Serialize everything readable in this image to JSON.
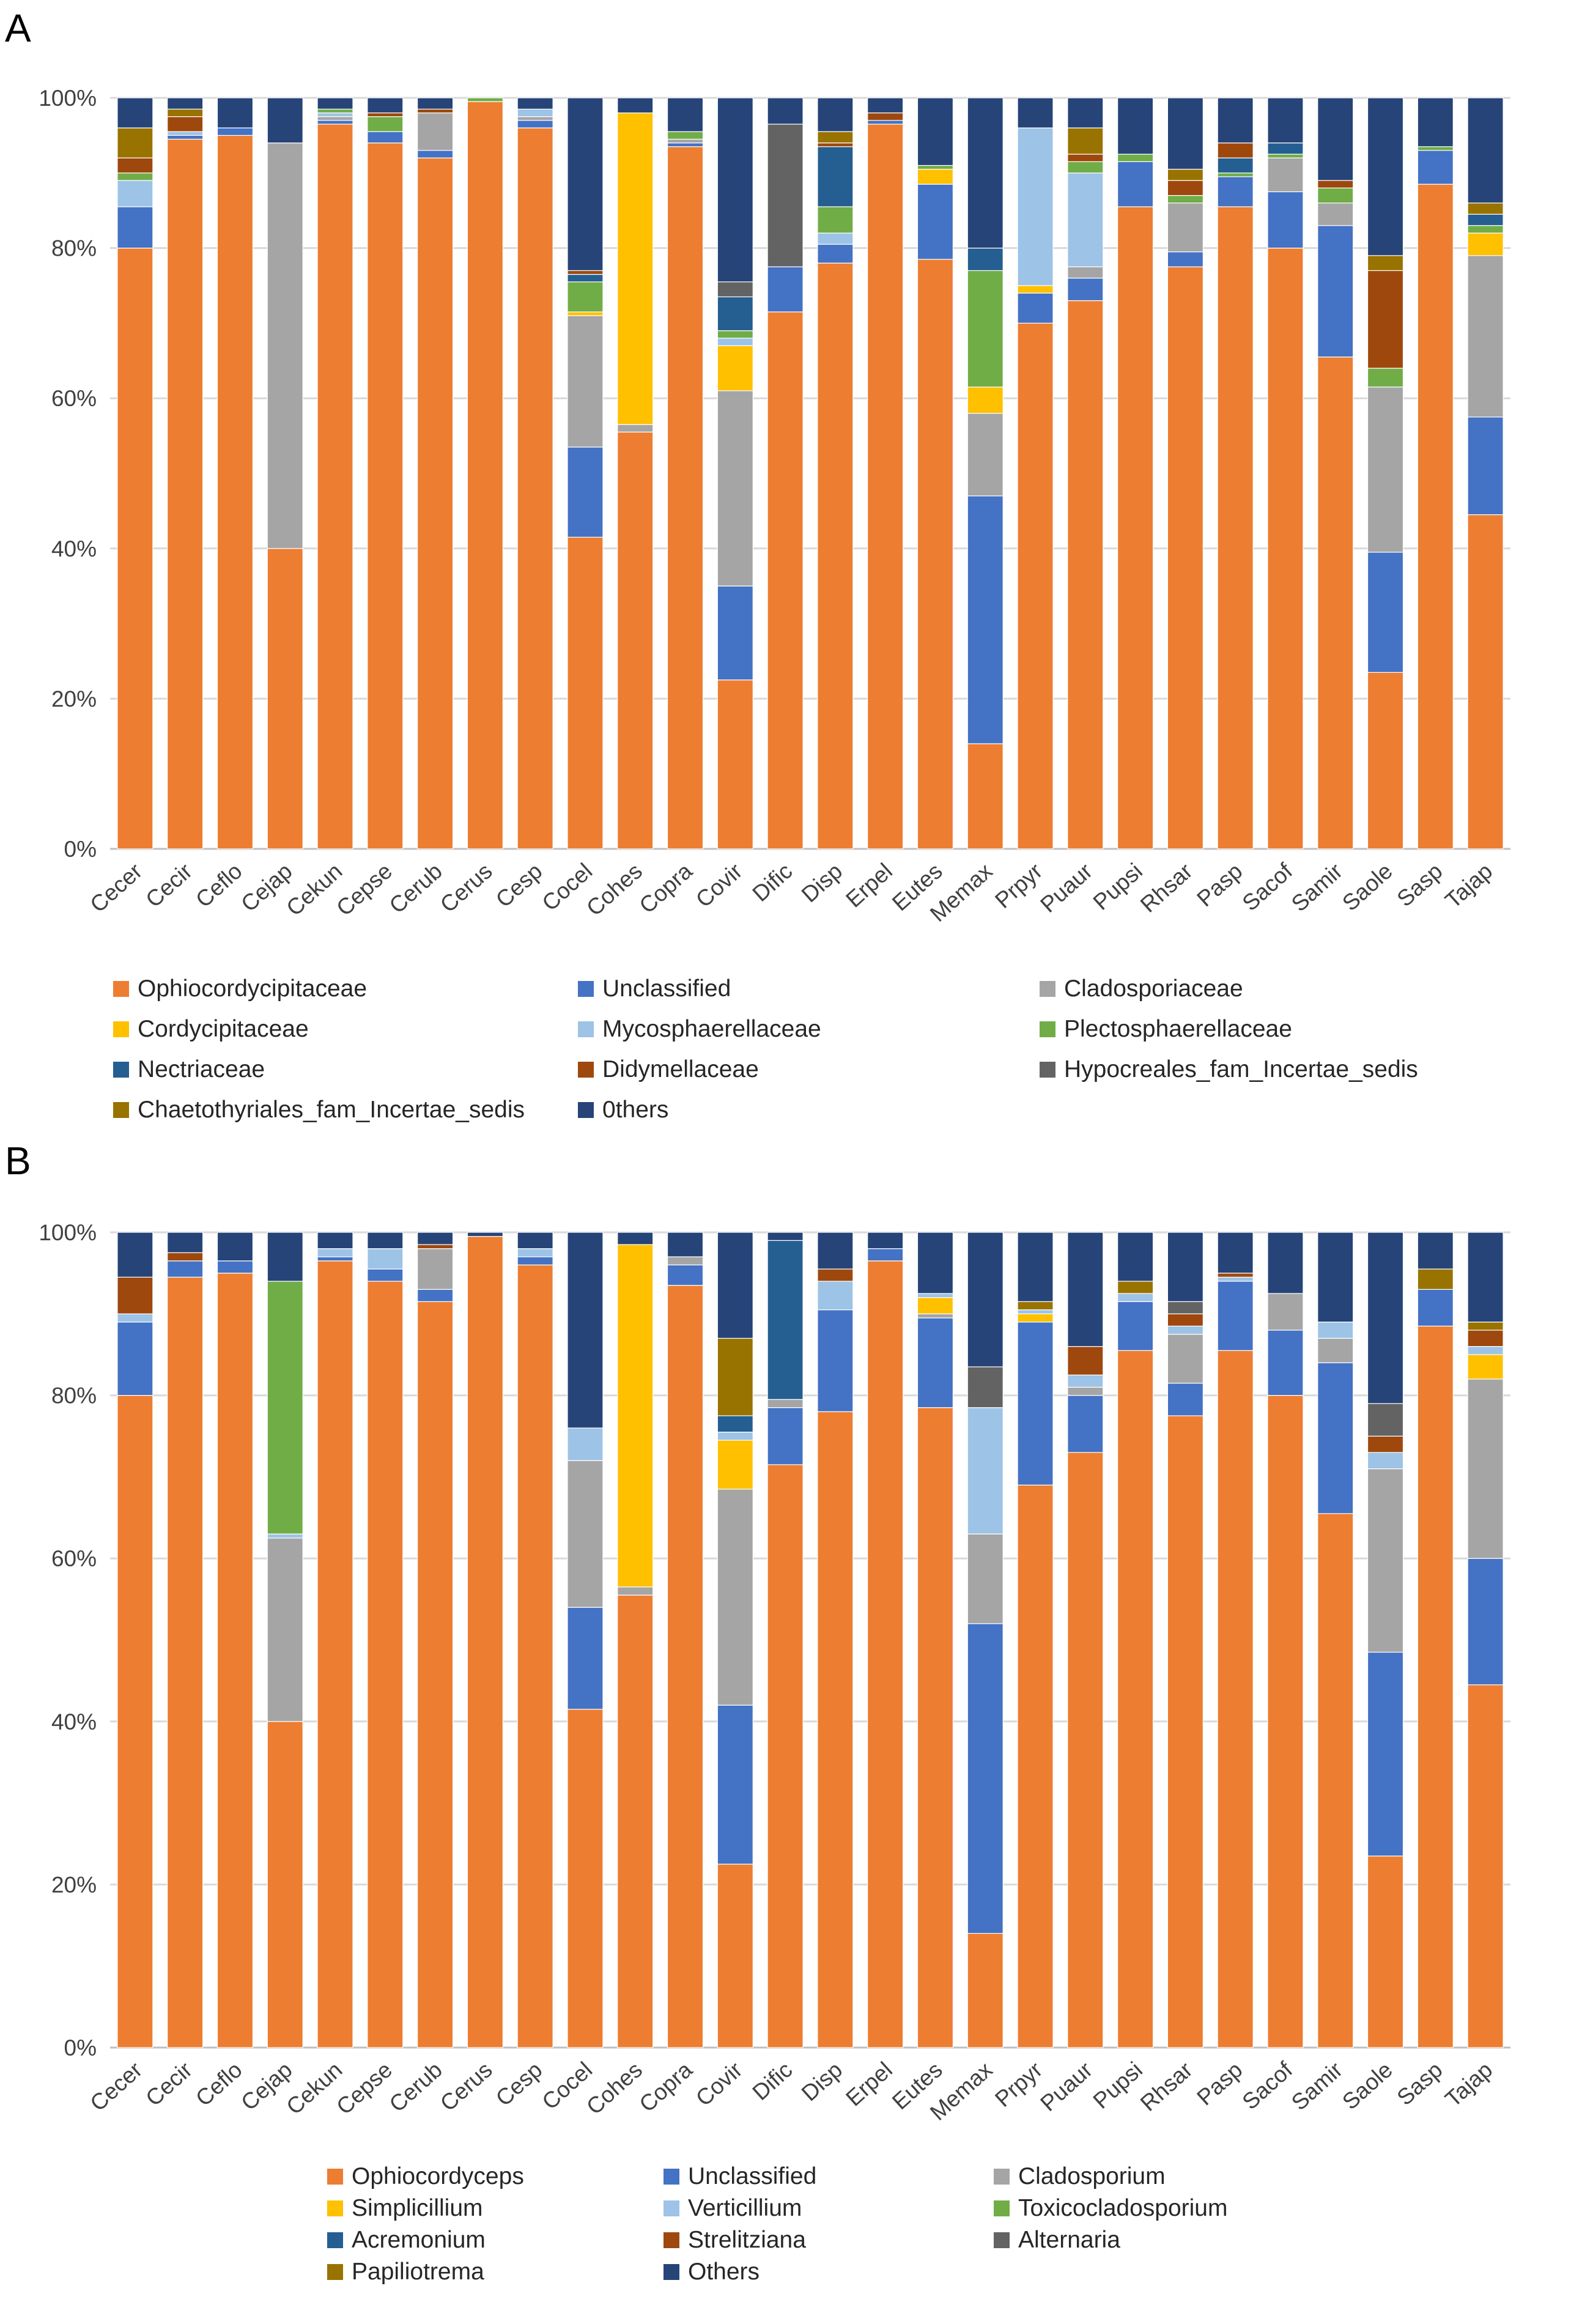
{
  "chart_data": [
    {
      "panel": "A",
      "type": "bar",
      "stacked": true,
      "ylim": [
        0,
        100
      ],
      "yticks": [
        "0%",
        "20%",
        "40%",
        "60%",
        "80%",
        "100%"
      ],
      "categories": [
        "Cecer",
        "Cecir",
        "Ceflo",
        "Cejap",
        "Cekun",
        "Cepse",
        "Cerub",
        "Cerus",
        "Cesp",
        "Cocel",
        "Cohes",
        "Copra",
        "Covir",
        "Dific",
        "Disp",
        "Erpel",
        "Eutes",
        "Memax",
        "Prpyr",
        "Puaur",
        "Pupsi",
        "Rhsar",
        "Pasp",
        "Sacof",
        "Samir",
        "Saole",
        "Sasp",
        "Tajap"
      ],
      "series": [
        {
          "name": "Ophiocordycipitaceae",
          "color": "#ED7D31",
          "values": [
            80,
            94.5,
            95,
            40,
            96.5,
            94,
            92,
            99.5,
            96,
            41.5,
            55.5,
            93.5,
            22.5,
            71.5,
            78,
            96.5,
            78.5,
            14,
            70,
            73,
            85.5,
            77.5,
            85.5,
            80,
            65.5,
            23.5,
            88.5,
            44.5
          ]
        },
        {
          "name": "Unclassified",
          "color": "#4472C4",
          "values": [
            5.5,
            0.5,
            1,
            0,
            0.5,
            1.5,
            1,
            0,
            1,
            12,
            0,
            0.5,
            12.5,
            6,
            2.5,
            0.5,
            10,
            33,
            4,
            3,
            6,
            2,
            4,
            7.5,
            17.5,
            16,
            4.5,
            13
          ]
        },
        {
          "name": "Cladosporiaceae",
          "color": "#A5A5A5",
          "values": [
            0,
            0,
            0,
            54,
            0.5,
            0,
            5,
            0,
            0.5,
            17.5,
            1,
            0.5,
            26,
            0,
            0,
            0,
            0,
            11,
            0,
            1.5,
            0,
            6.5,
            0,
            4.5,
            3,
            22,
            0,
            21.5
          ]
        },
        {
          "name": "Cordycipitaceae",
          "color": "#FFC000",
          "values": [
            0,
            0,
            0,
            0,
            0,
            0,
            0,
            0,
            0,
            0.5,
            41.5,
            0,
            6,
            0,
            0,
            0,
            2,
            3.5,
            1,
            0,
            0,
            0,
            0,
            0,
            0,
            0,
            0,
            3
          ]
        },
        {
          "name": "Mycosphaerellaceae",
          "color": "#9DC3E6",
          "values": [
            3.5,
            0.5,
            0,
            0,
            0.5,
            0,
            0,
            0,
            1,
            0,
            0,
            0,
            1,
            0,
            1.5,
            0,
            0,
            0,
            21,
            12.5,
            0,
            0,
            0,
            0,
            0,
            0,
            0,
            0
          ]
        },
        {
          "name": "Plectosphaerellaceae",
          "color": "#70AD47",
          "values": [
            1,
            0,
            0,
            0,
            0.5,
            2,
            0,
            0.5,
            0,
            4,
            0,
            1,
            1,
            0,
            3.5,
            0,
            0.5,
            15.5,
            0,
            1.5,
            1,
            1,
            0.5,
            0.5,
            2,
            2.5,
            0.5,
            1
          ]
        },
        {
          "name": "Nectriaceae",
          "color": "#255E91",
          "values": [
            0,
            0,
            0,
            0,
            0,
            0,
            0,
            0,
            0,
            1,
            0,
            0,
            4.5,
            0,
            8,
            0,
            0,
            3,
            0,
            0,
            0,
            0,
            2,
            1.5,
            0,
            0,
            0,
            1.5
          ]
        },
        {
          "name": "Didymellaceae",
          "color": "#9E480E",
          "values": [
            2,
            2,
            0,
            0,
            0,
            0.5,
            0.5,
            0,
            0,
            0.5,
            0,
            0,
            0,
            0,
            0.5,
            1,
            0,
            0,
            0,
            1,
            0,
            2,
            2,
            0,
            1,
            13,
            0,
            0
          ]
        },
        {
          "name": "Hypocreales_fam_Incertae_sedis",
          "color": "#636363",
          "values": [
            0,
            0,
            0,
            0,
            0,
            0,
            0,
            0,
            0,
            0,
            0,
            0,
            2,
            19,
            0,
            0,
            0,
            0,
            0,
            0,
            0,
            0,
            0,
            0,
            0,
            0,
            0,
            0
          ]
        },
        {
          "name": "Chaetothyriales_fam_Incertae_sedis",
          "color": "#997300",
          "values": [
            4,
            1,
            0,
            0,
            0,
            0,
            0,
            0,
            0,
            0,
            0,
            0,
            0,
            0,
            1.5,
            0,
            0,
            0,
            0,
            3.5,
            0,
            1.5,
            0,
            0,
            0,
            2,
            0,
            1.5
          ]
        },
        {
          "name": "0thers",
          "color": "#264478",
          "values": [
            4,
            1.5,
            4,
            6,
            1.5,
            2,
            1.5,
            0,
            1.5,
            23,
            2,
            4.5,
            24.5,
            3.5,
            4.5,
            2,
            9,
            20,
            4,
            4,
            7.5,
            9.5,
            6,
            6,
            11,
            21,
            6.5,
            14
          ]
        }
      ],
      "legend": [
        "Ophiocordycipitaceae",
        "Unclassified",
        "Cladosporiaceae",
        "Cordycipitaceae",
        "Mycosphaerellaceae",
        "Plectosphaerellaceae",
        "Nectriaceae",
        "Didymellaceae",
        "Hypocreales_fam_Incertae_sedis",
        "Chaetothyriales_fam_Incertae_sedis",
        "0thers"
      ]
    },
    {
      "panel": "B",
      "type": "bar",
      "stacked": true,
      "ylim": [
        0,
        100
      ],
      "yticks": [
        "0%",
        "20%",
        "40%",
        "60%",
        "80%",
        "100%"
      ],
      "categories": [
        "Cecer",
        "Cecir",
        "Ceflo",
        "Cejap",
        "Cekun",
        "Cepse",
        "Cerub",
        "Cerus",
        "Cesp",
        "Cocel",
        "Cohes",
        "Copra",
        "Covir",
        "Dific",
        "Disp",
        "Erpel",
        "Eutes",
        "Memax",
        "Prpyr",
        "Puaur",
        "Pupsi",
        "Rhsar",
        "Pasp",
        "Sacof",
        "Samir",
        "Saole",
        "Sasp",
        "Tajap"
      ],
      "series": [
        {
          "name": "Ophiocordyceps",
          "color": "#ED7D31",
          "values": [
            80,
            94.5,
            95,
            40,
            96.5,
            94,
            91.5,
            99.5,
            96,
            41.5,
            55.5,
            93.5,
            22.5,
            71.5,
            78,
            96.5,
            78.5,
            14,
            69,
            73,
            85.5,
            77.5,
            85.5,
            80,
            65.5,
            23.5,
            88.5,
            44.5
          ]
        },
        {
          "name": "Unclassified",
          "color": "#4472C4",
          "values": [
            9,
            2,
            1.5,
            0,
            0.5,
            1.5,
            1.5,
            0,
            1,
            12.5,
            0,
            2.5,
            19.5,
            7,
            12.5,
            1.5,
            11,
            38,
            20,
            7,
            6,
            4,
            8.5,
            8,
            18.5,
            25,
            4.5,
            15.5
          ]
        },
        {
          "name": "Cladosporium",
          "color": "#A5A5A5",
          "values": [
            0,
            0,
            0,
            22.5,
            0,
            0,
            5,
            0,
            0,
            18,
            1,
            1,
            26.5,
            1,
            0,
            0,
            0.5,
            11,
            0,
            1,
            0,
            6,
            0,
            4.5,
            3,
            22.5,
            0,
            22
          ]
        },
        {
          "name": "Simplicillium",
          "color": "#FFC000",
          "values": [
            0,
            0,
            0,
            0,
            0,
            0,
            0,
            0,
            0,
            0,
            42,
            0,
            6,
            0,
            0,
            0,
            2,
            0,
            1,
            0,
            0,
            0,
            0,
            0,
            0,
            0,
            0,
            3
          ]
        },
        {
          "name": "Verticillium",
          "color": "#9DC3E6",
          "values": [
            1,
            0,
            0,
            0.5,
            1,
            2.5,
            0,
            0,
            1,
            4,
            0,
            0,
            1,
            0,
            3.5,
            0,
            0.5,
            15.5,
            0.5,
            1.5,
            1,
            1,
            0.5,
            0,
            2,
            2,
            0,
            1
          ]
        },
        {
          "name": "Toxicocladosporium",
          "color": "#70AD47",
          "values": [
            0,
            0,
            0,
            31,
            0,
            0,
            0,
            0,
            0,
            0,
            0,
            0,
            0,
            0,
            0,
            0,
            0,
            0,
            0,
            0,
            0,
            0,
            0,
            0,
            0,
            0,
            0,
            0
          ]
        },
        {
          "name": "Acremonium",
          "color": "#255E91",
          "values": [
            0,
            0,
            0,
            0,
            0,
            0,
            0,
            0,
            0,
            0,
            0,
            0,
            2,
            19.5,
            0,
            0,
            0,
            0,
            0,
            0,
            0,
            0,
            0,
            0,
            0,
            0,
            0,
            0
          ]
        },
        {
          "name": "Strelitziana",
          "color": "#9E480E",
          "values": [
            4.5,
            1,
            0,
            0,
            0,
            0,
            0.5,
            0,
            0,
            0,
            0,
            0,
            0,
            0,
            1.5,
            0,
            0,
            0,
            0,
            3.5,
            0,
            1.5,
            0.5,
            0,
            0,
            2,
            0,
            2
          ]
        },
        {
          "name": "Alternaria",
          "color": "#636363",
          "values": [
            0,
            0,
            0,
            0,
            0,
            0,
            0,
            0,
            0,
            0,
            0,
            0,
            0,
            0,
            0,
            0,
            0,
            5,
            0,
            0,
            0,
            1.5,
            0,
            0,
            0,
            4,
            0,
            0
          ]
        },
        {
          "name": "Papiliotrema",
          "color": "#997300",
          "values": [
            0,
            0,
            0,
            0,
            0,
            0,
            0,
            0,
            0,
            0,
            0,
            0,
            9.5,
            0,
            0,
            0,
            0,
            0,
            1,
            0,
            1.5,
            0,
            0,
            0,
            0,
            0,
            2.5,
            1
          ]
        },
        {
          "name": "Others",
          "color": "#264478",
          "values": [
            5.5,
            2.5,
            3.5,
            6,
            2,
            2,
            1.5,
            0.5,
            2,
            24,
            1.5,
            3,
            13,
            1,
            4.5,
            2,
            7.5,
            16.5,
            8.5,
            14,
            6,
            8.5,
            5,
            7.5,
            11,
            21,
            4.5,
            11
          ]
        }
      ],
      "legend": [
        "Ophiocordyceps",
        "Unclassified",
        "Cladosporium",
        "Simplicillium",
        "Verticillium",
        "Toxicocladosporium",
        "Acremonium",
        "Strelitziana",
        "Alternaria",
        "Papiliotrema",
        "Others"
      ]
    }
  ]
}
